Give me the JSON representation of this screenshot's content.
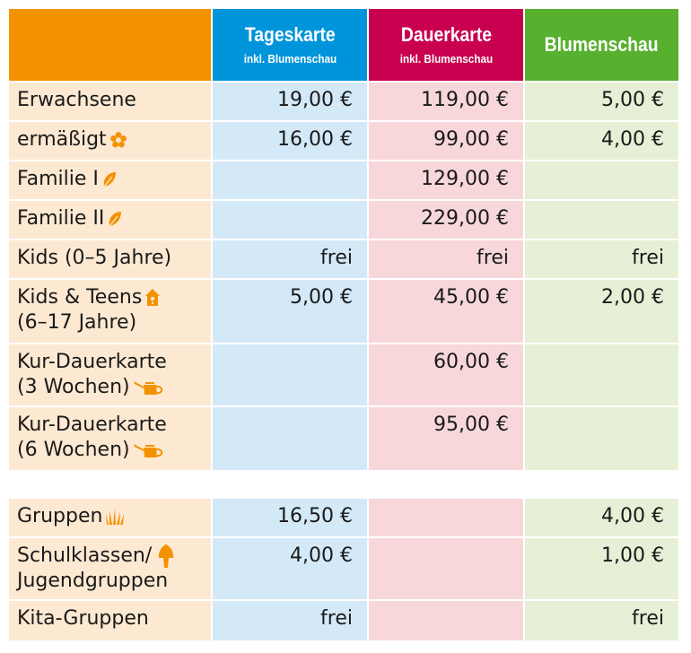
{
  "header": {
    "tageskarte": "Tageskarte",
    "tageskarte_sub": "inkl. Blumenschau",
    "dauerkarte": "Dauerkarte",
    "dauerkarte_sub": "inkl. Blumenschau",
    "blumenschau": "Blumenschau"
  },
  "colors": {
    "orange": "#f39200",
    "blue": "#0095db",
    "magenta": "#c8004f",
    "green": "#58b02f"
  },
  "rows": [
    {
      "label": "Erwachsene",
      "tageskarte": "19,00 €",
      "dauerkarte": "119,00 €",
      "blumenschau": "5,00 €"
    },
    {
      "label": "ermäßigt",
      "icon": "flower-icon",
      "tageskarte": "16,00 €",
      "dauerkarte": "99,00 €",
      "blumenschau": "4,00 €"
    },
    {
      "label": "Familie I",
      "icon": "leaf-icon",
      "tageskarte": "",
      "dauerkarte": "129,00 €",
      "blumenschau": ""
    },
    {
      "label": "Familie II",
      "icon": "leaf-icon",
      "tageskarte": "",
      "dauerkarte": "229,00 €",
      "blumenschau": ""
    },
    {
      "label": "Kids (0–5 Jahre)",
      "tageskarte": "frei",
      "dauerkarte": "frei",
      "blumenschau": "frei"
    },
    {
      "label1": "Kids & Teens",
      "label2": "(6–17 Jahre)",
      "icon": "birdhouse-icon",
      "tageskarte": "5,00 €",
      "dauerkarte": "45,00 €",
      "blumenschau": "2,00 €"
    },
    {
      "label1": "Kur-Dauerkarte",
      "label2": "(3 Wochen)",
      "icon": "watering-can-icon",
      "tageskarte": "",
      "dauerkarte": "60,00 €",
      "blumenschau": ""
    },
    {
      "label1": "Kur-Dauerkarte",
      "label2": "(6 Wochen)",
      "icon": "watering-can-icon",
      "tageskarte": "",
      "dauerkarte": "95,00 €",
      "blumenschau": ""
    }
  ],
  "groups": [
    {
      "label": "Gruppen",
      "icon": "grass-icon",
      "tageskarte": "16,50 €",
      "dauerkarte": "",
      "blumenschau": "4,00 €"
    },
    {
      "label1": "Schulklassen/",
      "label2": "Jugendgruppen",
      "icon": "mushroom-icon",
      "tageskarte": "4,00 €",
      "dauerkarte": "",
      "blumenschau": "1,00 €"
    },
    {
      "label": "Kita-Gruppen",
      "tageskarte": "frei",
      "dauerkarte": "",
      "blumenschau": "frei"
    }
  ]
}
